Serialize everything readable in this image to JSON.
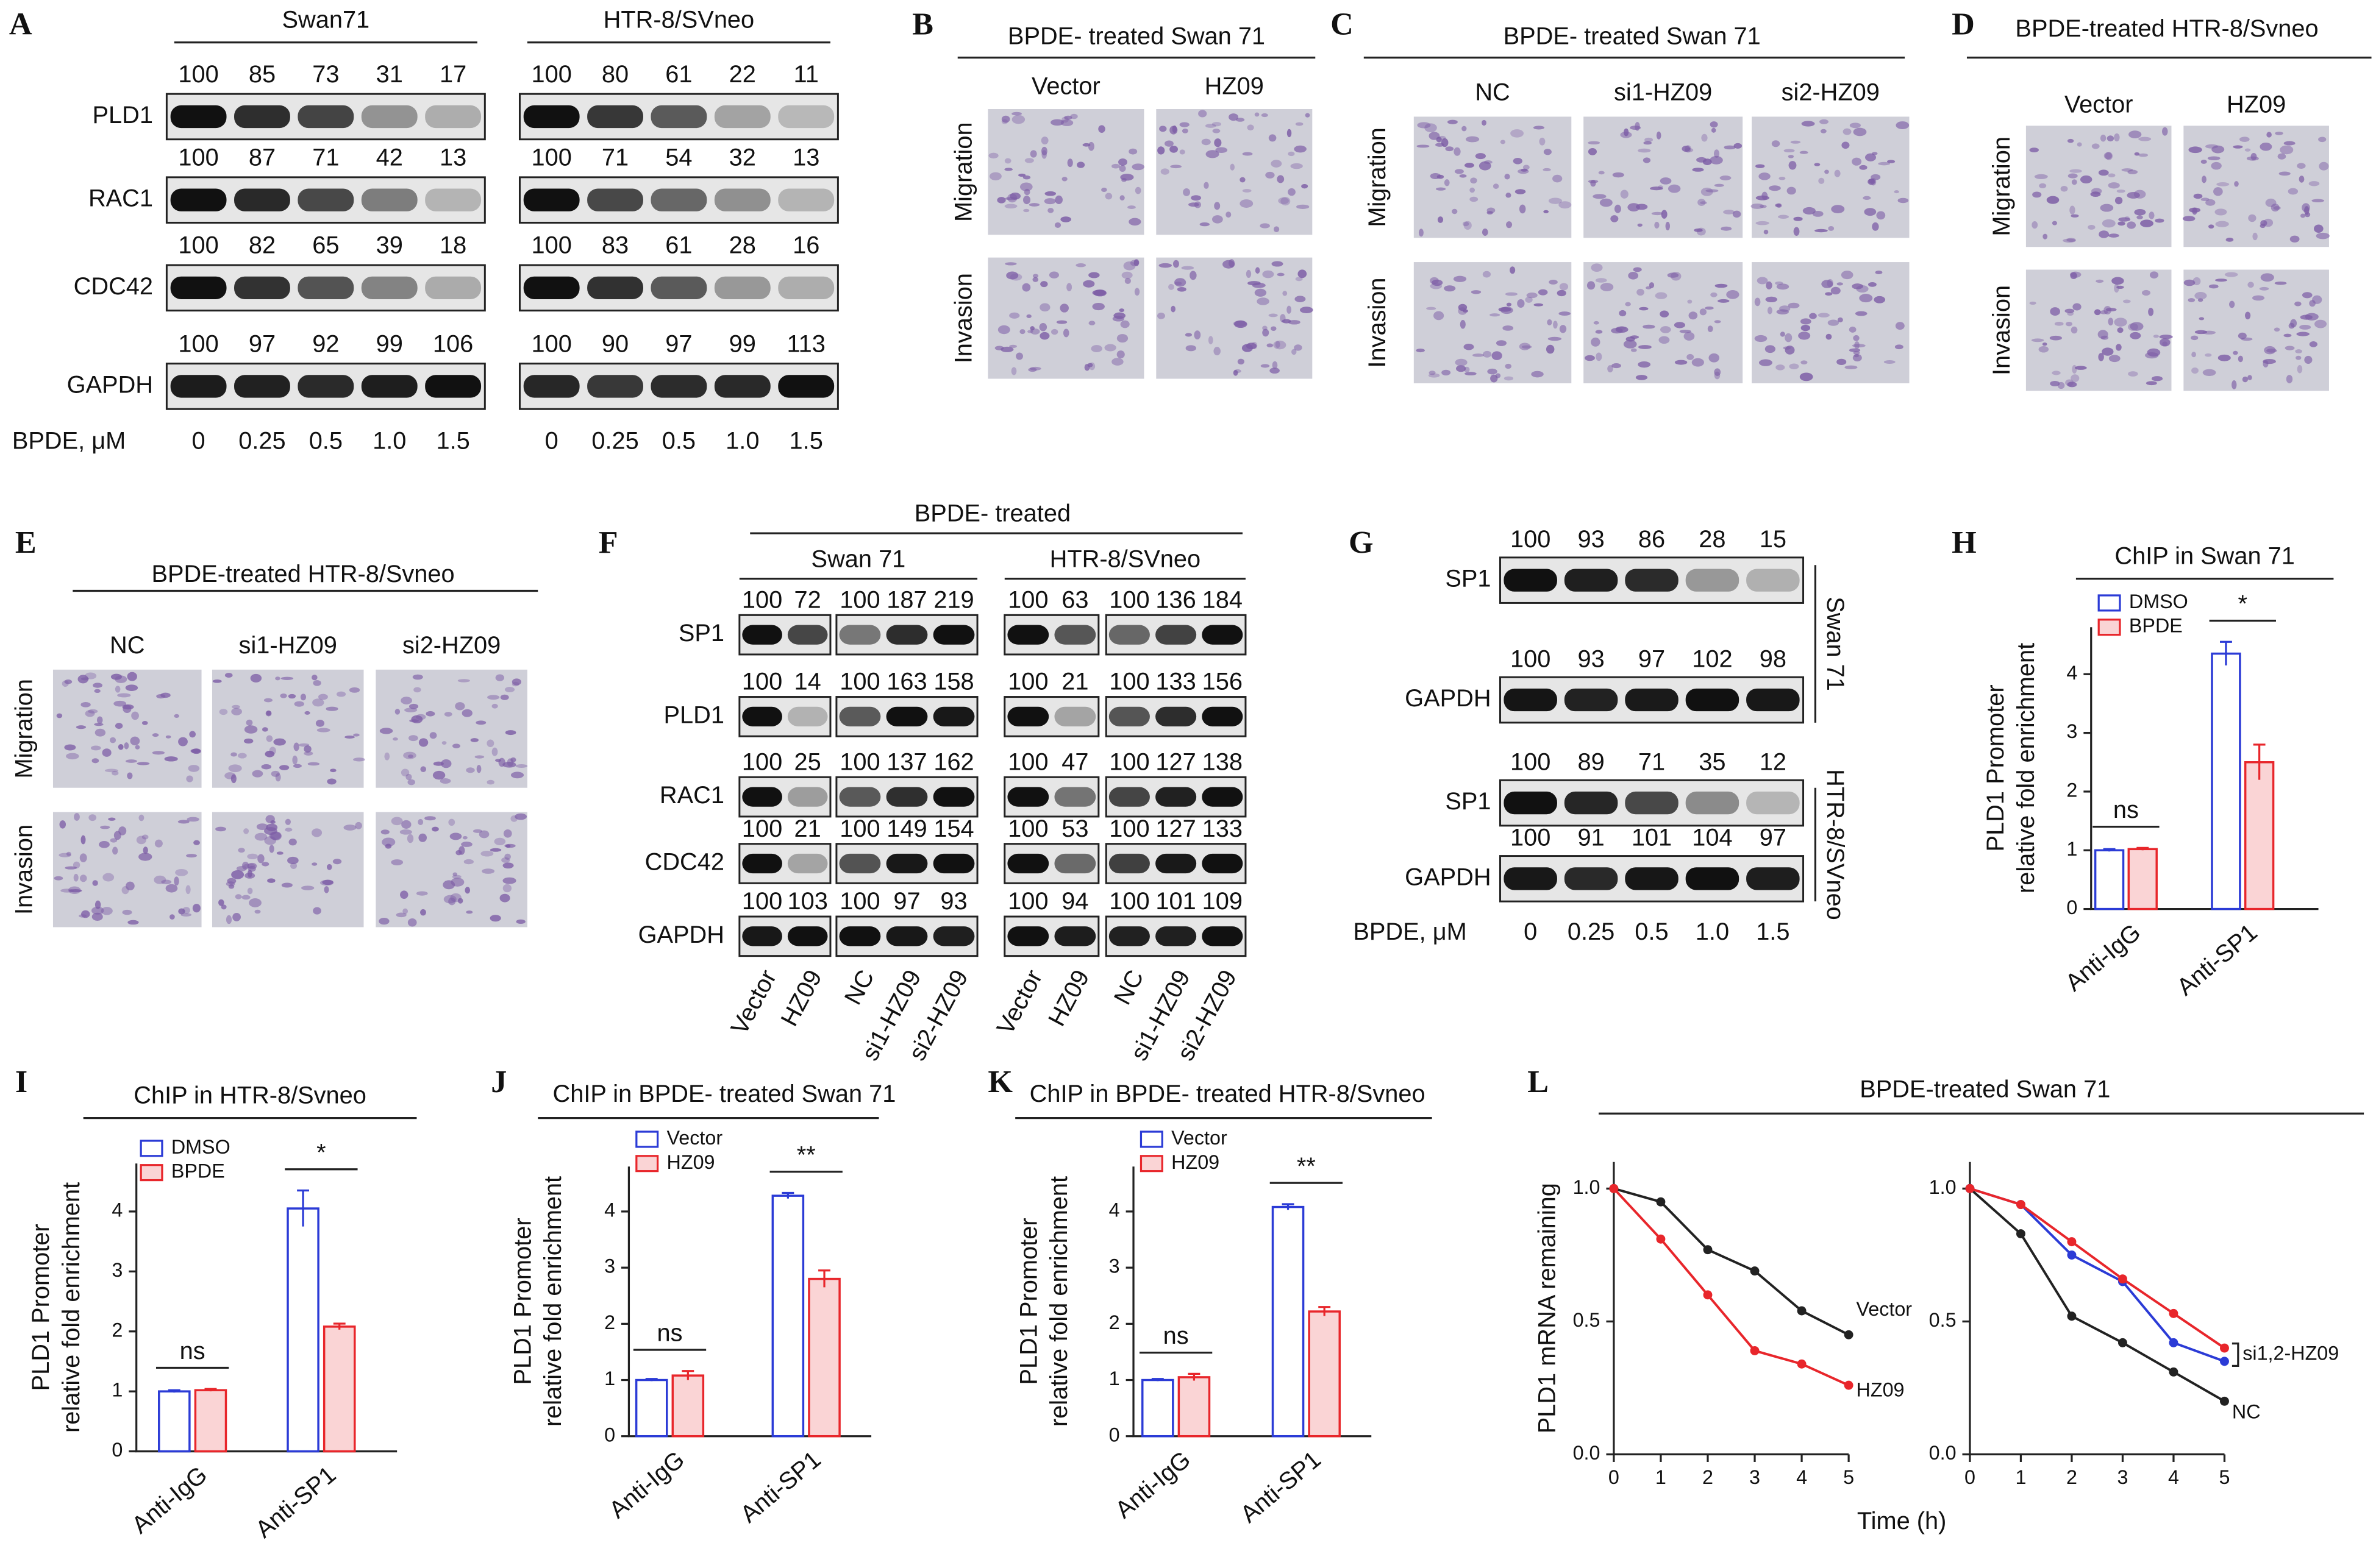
{
  "panel_A": {
    "label": "A",
    "groups": [
      "Swan71",
      "HTR-8/SVneo"
    ],
    "rows": [
      {
        "name": "PLD1",
        "values": [
          [
            100,
            85,
            73,
            31,
            17
          ],
          [
            100,
            80,
            61,
            22,
            11
          ]
        ]
      },
      {
        "name": "RAC1",
        "values": [
          [
            100,
            87,
            71,
            42,
            13
          ],
          [
            100,
            71,
            54,
            32,
            13
          ]
        ]
      },
      {
        "name": "CDC42",
        "values": [
          [
            100,
            82,
            65,
            39,
            18
          ],
          [
            100,
            83,
            61,
            28,
            16
          ]
        ]
      },
      {
        "name": "GAPDH",
        "values": [
          [
            100,
            97,
            92,
            99,
            106
          ],
          [
            100,
            90,
            97,
            99,
            113
          ]
        ]
      }
    ],
    "dose_label": "BPDE, μM",
    "doses": [
      "0",
      "0.25",
      "0.5",
      "1.0",
      "1.5"
    ]
  },
  "panel_B": {
    "label": "B",
    "title": "BPDE- treated Swan 71",
    "columns": [
      "Vector",
      "HZ09"
    ],
    "rows": [
      "Migration",
      "Invasion"
    ]
  },
  "panel_C": {
    "label": "C",
    "title": "BPDE- treated Swan 71",
    "columns": [
      "NC",
      "si1-HZ09",
      "si2-HZ09"
    ],
    "rows": [
      "Migration",
      "Invasion"
    ]
  },
  "panel_D": {
    "label": "D",
    "title": "BPDE-treated HTR-8/Svneo",
    "columns": [
      "Vector",
      "HZ09"
    ],
    "rows": [
      "Migration",
      "Invasion"
    ]
  },
  "panel_E": {
    "label": "E",
    "title": "BPDE-treated HTR-8/Svneo",
    "columns": [
      "NC",
      "si1-HZ09",
      "si2-HZ09"
    ],
    "rows": [
      "Migration",
      "Invasion"
    ]
  },
  "panel_F": {
    "label": "F",
    "title": "BPDE- treated",
    "groups": [
      "Swan 71",
      "HTR-8/SVneo"
    ],
    "rows": [
      {
        "name": "SP1",
        "values": [
          [
            100,
            72,
            100,
            187,
            219
          ],
          [
            100,
            63,
            100,
            136,
            184
          ]
        ]
      },
      {
        "name": "PLD1",
        "values": [
          [
            100,
            14,
            100,
            163,
            158
          ],
          [
            100,
            21,
            100,
            133,
            156
          ]
        ]
      },
      {
        "name": "RAC1",
        "values": [
          [
            100,
            25,
            100,
            137,
            162
          ],
          [
            100,
            47,
            100,
            127,
            138
          ]
        ]
      },
      {
        "name": "CDC42",
        "values": [
          [
            100,
            21,
            100,
            149,
            154
          ],
          [
            100,
            53,
            100,
            127,
            133
          ]
        ]
      },
      {
        "name": "GAPDH",
        "values": [
          [
            100,
            103,
            100,
            97,
            93
          ],
          [
            100,
            94,
            100,
            101,
            109
          ]
        ]
      }
    ],
    "lanes": [
      "Vector",
      "HZ09",
      "NC",
      "si1-HZ09",
      "si2-HZ09"
    ]
  },
  "panel_G": {
    "label": "G",
    "cells": [
      {
        "name": "Swan 71",
        "rows": [
          {
            "name": "SP1",
            "values": [
              100,
              93,
              86,
              28,
              15
            ]
          },
          {
            "name": "GAPDH",
            "values": [
              100,
              93,
              97,
              102,
              98
            ]
          }
        ]
      },
      {
        "name": "HTR-8/SVneo",
        "rows": [
          {
            "name": "SP1",
            "values": [
              100,
              89,
              71,
              35,
              12
            ]
          },
          {
            "name": "GAPDH",
            "values": [
              100,
              91,
              101,
              104,
              97
            ]
          }
        ]
      }
    ],
    "dose_label": "BPDE, μM",
    "doses": [
      "0",
      "0.25",
      "0.5",
      "1.0",
      "1.5"
    ]
  },
  "chart_data": [
    {
      "type": "bar",
      "label": "H",
      "title": "ChIP in Swan 71",
      "ylabel": [
        "PLD1 Promoter",
        "relative fold enrichment"
      ],
      "categories": [
        "Anti-IgG",
        "Anti-SP1"
      ],
      "series": [
        {
          "name": "DMSO",
          "color": "#2b3bd6",
          "values": [
            1.0,
            4.35
          ],
          "errors": [
            0.02,
            0.2
          ]
        },
        {
          "name": "BPDE",
          "color": "#e8262b",
          "values": [
            1.02,
            2.5
          ],
          "errors": [
            0.02,
            0.3
          ]
        }
      ],
      "annotations": [
        {
          "text": "ns",
          "category": 0
        },
        {
          "text": "*",
          "category": 1
        }
      ],
      "ylim": [
        0,
        4.8
      ],
      "yticks": [
        0,
        1,
        2,
        3,
        4
      ]
    },
    {
      "type": "bar",
      "label": "I",
      "title": "ChIP in HTR-8/Svneo",
      "ylabel": [
        "PLD1 Promoter",
        "relative fold enrichment"
      ],
      "categories": [
        "Anti-IgG",
        "Anti-SP1"
      ],
      "series": [
        {
          "name": "DMSO",
          "color": "#2b3bd6",
          "values": [
            1.0,
            4.05
          ],
          "errors": [
            0.02,
            0.3
          ]
        },
        {
          "name": "BPDE",
          "color": "#e8262b",
          "values": [
            1.02,
            2.08
          ],
          "errors": [
            0.02,
            0.05
          ]
        }
      ],
      "annotations": [
        {
          "text": "ns",
          "category": 0
        },
        {
          "text": "*",
          "category": 1
        }
      ],
      "ylim": [
        0,
        4.8
      ],
      "yticks": [
        0,
        1,
        2,
        3,
        4
      ]
    },
    {
      "type": "bar",
      "label": "J",
      "title": "ChIP in BPDE- treated Swan 71",
      "ylabel": [
        "PLD1 Promoter",
        "relative fold enrichment"
      ],
      "categories": [
        "Anti-IgG",
        "Anti-SP1"
      ],
      "series": [
        {
          "name": "Vector",
          "color": "#2b3bd6",
          "values": [
            1.0,
            4.28
          ],
          "errors": [
            0.02,
            0.05
          ]
        },
        {
          "name": "HZ09",
          "color": "#e8262b",
          "values": [
            1.08,
            2.8
          ],
          "errors": [
            0.08,
            0.15
          ]
        }
      ],
      "annotations": [
        {
          "text": "ns",
          "category": 0
        },
        {
          "text": "**",
          "category": 1
        }
      ],
      "ylim": [
        0,
        4.8
      ],
      "yticks": [
        0,
        1,
        2,
        3,
        4
      ]
    },
    {
      "type": "bar",
      "label": "K",
      "title": "ChIP in BPDE- treated HTR-8/Svneo",
      "ylabel": [
        "PLD1 Promoter",
        "relative fold enrichment"
      ],
      "categories": [
        "Anti-IgG",
        "Anti-SP1"
      ],
      "series": [
        {
          "name": "Vector",
          "color": "#2b3bd6",
          "values": [
            1.0,
            4.08
          ],
          "errors": [
            0.02,
            0.05
          ]
        },
        {
          "name": "HZ09",
          "color": "#e8262b",
          "values": [
            1.05,
            2.22
          ],
          "errors": [
            0.06,
            0.08
          ]
        }
      ],
      "annotations": [
        {
          "text": "ns",
          "category": 0
        },
        {
          "text": "**",
          "category": 1
        }
      ],
      "ylim": [
        0,
        4.8
      ],
      "yticks": [
        0,
        1,
        2,
        3,
        4
      ]
    },
    {
      "type": "line",
      "label": "L",
      "title": "BPDE-treated Swan 71",
      "ylabel": "PLD1 mRNA remaining",
      "xlabel": "Time (h)",
      "x": [
        0,
        1,
        2,
        3,
        4,
        5
      ],
      "series": [
        {
          "name": "Vector",
          "color": "#222222",
          "values": [
            1,
            0.95,
            0.77,
            0.69,
            0.54,
            0.45
          ]
        },
        {
          "name": "HZ09",
          "color": "#e8262b",
          "values": [
            1,
            0.81,
            0.6,
            0.39,
            0.34,
            0.26
          ]
        }
      ],
      "xlim": [
        0,
        5
      ],
      "ylim": [
        0,
        1.1
      ],
      "xticks": [
        0,
        1,
        2,
        3,
        4,
        5
      ],
      "yticks": [
        {
          "value": 0,
          "label": "0.0"
        },
        {
          "value": 0.5,
          "label": "0.5"
        },
        {
          "value": 1,
          "label": "1.0"
        }
      ]
    },
    {
      "type": "line",
      "x": [
        0,
        1,
        2,
        3,
        4,
        5
      ],
      "series": [
        {
          "name": "NC",
          "color": "#222222",
          "values": [
            1,
            0.83,
            0.52,
            0.42,
            0.31,
            0.2
          ]
        },
        {
          "color": "#2b3bd6",
          "values": [
            1,
            0.94,
            0.75,
            0.65,
            0.42,
            0.35
          ]
        },
        {
          "color": "#e8262b",
          "values": [
            1,
            0.94,
            0.8,
            0.66,
            0.53,
            0.4
          ]
        }
      ],
      "annotation": "si1,2-HZ09",
      "xlim": [
        0,
        5
      ],
      "ylim": [
        0,
        1.1
      ],
      "xticks": [
        0,
        1,
        2,
        3,
        4,
        5
      ],
      "yticks": [
        {
          "value": 0,
          "label": "0.0"
        },
        {
          "value": 0.5,
          "label": "0.5"
        },
        {
          "value": 1,
          "label": "1.0"
        }
      ]
    }
  ]
}
